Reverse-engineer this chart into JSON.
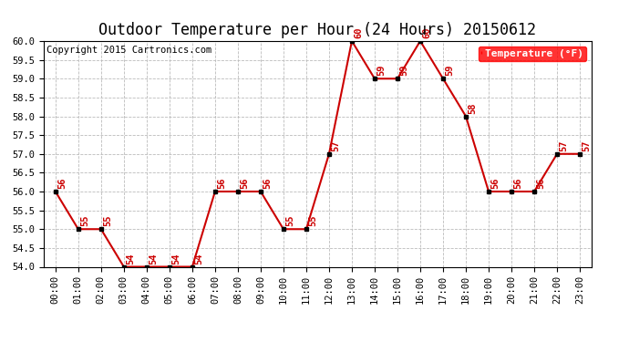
{
  "title": "Outdoor Temperature per Hour (24 Hours) 20150612",
  "copyright": "Copyright 2015 Cartronics.com",
  "legend_label": "Temperature (°F)",
  "hours": [
    "00:00",
    "01:00",
    "02:00",
    "03:00",
    "04:00",
    "05:00",
    "06:00",
    "07:00",
    "08:00",
    "09:00",
    "10:00",
    "11:00",
    "12:00",
    "13:00",
    "14:00",
    "15:00",
    "16:00",
    "17:00",
    "18:00",
    "19:00",
    "20:00",
    "21:00",
    "22:00",
    "23:00"
  ],
  "temps": [
    56,
    55,
    55,
    54,
    54,
    54,
    54,
    56,
    56,
    56,
    55,
    55,
    57,
    60,
    59,
    59,
    60,
    59,
    58,
    56,
    56,
    56,
    57,
    57
  ],
  "ylim": [
    54.0,
    60.0
  ],
  "line_color": "#cc0000",
  "marker_color": "black",
  "label_color": "#cc0000",
  "background_color": "#ffffff",
  "grid_color": "#bbbbbb",
  "title_fontsize": 12,
  "copyright_fontsize": 7.5,
  "tick_fontsize": 7.5,
  "annotation_fontsize": 7.5,
  "legend_fontsize": 8
}
